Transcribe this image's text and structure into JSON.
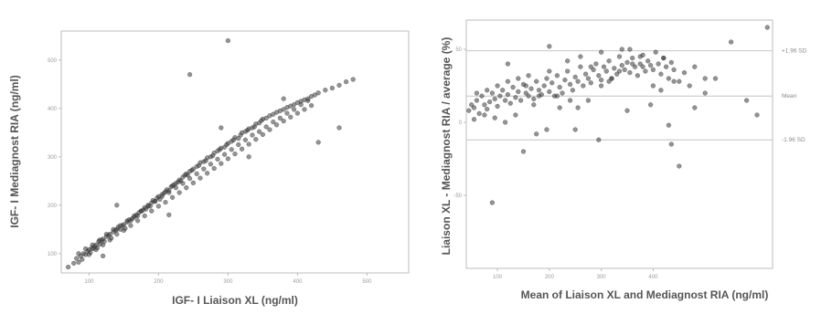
{
  "chart_data": [
    {
      "type": "scatter",
      "xlabel": "IGF- I Liaison XL (ng/ml)",
      "ylabel": "IGF- I Mediagnost RIA (ng/ml)",
      "xlim": [
        60,
        560
      ],
      "ylim": [
        60,
        560
      ],
      "xticks": [
        "100",
        "200",
        "300",
        "400",
        "500"
      ],
      "yticks": [
        "100",
        "200",
        "300",
        "400",
        "500"
      ],
      "grid": false,
      "series": [
        {
          "values_note_excluded": false,
          "x": [
            70,
            78,
            82,
            85,
            88,
            92,
            95,
            98,
            100,
            102,
            104,
            106,
            108,
            110,
            112,
            114,
            116,
            118,
            120,
            122,
            125,
            128,
            130,
            132,
            135,
            138,
            140,
            142,
            145,
            148,
            150,
            152,
            155,
            158,
            160,
            162,
            165,
            168,
            170,
            172,
            175,
            178,
            180,
            182,
            185,
            188,
            190,
            192,
            195,
            198,
            200,
            202,
            205,
            208,
            210,
            212,
            215,
            218,
            220,
            222,
            225,
            228,
            230,
            232,
            235,
            238,
            240,
            242,
            245,
            248,
            250,
            255,
            258,
            260,
            265,
            268,
            270,
            275,
            278,
            280,
            285,
            288,
            290,
            295,
            298,
            300,
            305,
            308,
            310,
            315,
            318,
            320,
            325,
            328,
            330,
            335,
            338,
            340,
            345,
            348,
            350,
            355,
            360,
            365,
            370,
            375,
            380,
            385,
            390,
            395,
            400,
            405,
            410,
            415,
            420,
            425,
            430,
            440,
            450,
            460,
            470,
            480,
            85,
            95,
            105,
            115,
            125,
            135,
            145,
            155,
            165,
            175,
            185,
            195,
            205,
            215,
            225,
            235,
            245,
            255,
            265,
            275,
            285,
            295,
            305,
            315,
            325,
            335,
            345,
            355,
            365,
            375,
            385,
            395,
            405,
            415,
            90,
            100,
            110,
            120,
            130,
            140,
            150,
            160,
            170,
            180,
            190,
            200,
            210,
            220,
            230,
            240,
            250,
            260,
            270,
            280,
            290,
            300,
            310,
            320,
            330,
            340,
            350,
            360,
            370,
            380,
            390,
            400,
            410,
            420,
            300,
            245,
            460,
            430,
            290,
            380,
            215,
            140,
            120,
            330
          ],
          "y": [
            72,
            80,
            90,
            82,
            95,
            100,
            98,
            105,
            108,
            102,
            112,
            110,
            115,
            118,
            112,
            125,
            120,
            128,
            130,
            125,
            135,
            138,
            140,
            132,
            145,
            148,
            150,
            155,
            150,
            158,
            160,
            152,
            165,
            170,
            168,
            172,
            175,
            180,
            178,
            185,
            188,
            190,
            195,
            192,
            200,
            198,
            205,
            210,
            208,
            215,
            218,
            212,
            222,
            225,
            228,
            232,
            230,
            238,
            240,
            242,
            245,
            248,
            252,
            250,
            258,
            262,
            265,
            262,
            270,
            272,
            275,
            280,
            282,
            288,
            290,
            292,
            298,
            300,
            302,
            308,
            312,
            315,
            318,
            320,
            325,
            328,
            332,
            335,
            340,
            338,
            345,
            350,
            352,
            355,
            358,
            360,
            362,
            368,
            370,
            375,
            378,
            380,
            385,
            388,
            392,
            395,
            398,
            402,
            405,
            408,
            412,
            415,
            418,
            420,
            425,
            428,
            432,
            438,
            442,
            448,
            455,
            460,
            100,
            110,
            118,
            128,
            140,
            150,
            158,
            168,
            178,
            188,
            198,
            208,
            218,
            226,
            236,
            245,
            255,
            265,
            275,
            285,
            295,
            305,
            315,
            325,
            335,
            345,
            352,
            362,
            372,
            380,
            390,
            398,
            408,
            416,
            88,
            98,
            108,
            118,
            128,
            140,
            148,
            158,
            168,
            178,
            188,
            198,
            206,
            216,
            226,
            236,
            246,
            256,
            266,
            276,
            286,
            296,
            306,
            316,
            326,
            336,
            346,
            356,
            366,
            374,
            382,
            390,
            398,
            406,
            540,
            470,
            360,
            330,
            360,
            420,
            180,
            200,
            95,
            300
          ]
        }
      ]
    },
    {
      "type": "scatter",
      "xlabel": "Mean of Liaison XL and Mediagnost RIA (ng/ml)",
      "ylabel": "Liaison XL - Mediagnost RIA / average (%)",
      "xlim": [
        40,
        630
      ],
      "ylim": [
        -100,
        70
      ],
      "xticks": [
        "100",
        "200",
        "300",
        "400"
      ],
      "yticks": [
        "50",
        "0",
        "-50"
      ],
      "grid": false,
      "reference_lines": [
        {
          "label": "+1.96 SD",
          "y": 49
        },
        {
          "label": "Mean",
          "y": 18
        },
        {
          "label": "-1.96 SD",
          "y": -12
        }
      ],
      "series": [
        {
          "x": [
            45,
            50,
            55,
            60,
            65,
            70,
            75,
            80,
            85,
            90,
            95,
            100,
            105,
            110,
            115,
            120,
            125,
            130,
            135,
            140,
            145,
            150,
            155,
            160,
            165,
            170,
            175,
            180,
            185,
            190,
            195,
            200,
            205,
            210,
            215,
            220,
            225,
            230,
            235,
            240,
            245,
            250,
            255,
            260,
            265,
            270,
            275,
            280,
            285,
            290,
            295,
            300,
            305,
            310,
            315,
            320,
            325,
            330,
            335,
            340,
            345,
            350,
            355,
            360,
            365,
            370,
            375,
            380,
            385,
            390,
            395,
            400,
            405,
            410,
            415,
            420,
            425,
            430,
            435,
            440,
            450,
            460,
            470,
            480,
            500,
            520,
            550,
            580,
            600,
            620,
            55,
            75,
            95,
            115,
            135,
            155,
            175,
            195,
            215,
            235,
            255,
            275,
            295,
            315,
            335,
            355,
            375,
            395,
            415,
            435,
            60,
            80,
            100,
            120,
            140,
            160,
            180,
            200,
            220,
            240,
            260,
            280,
            300,
            320,
            340,
            360,
            380,
            400,
            420,
            440,
            150,
            250,
            350,
            450,
            500,
            480,
            430,
            300,
            200,
            120,
            90,
            170
          ],
          "y": [
            8,
            12,
            10,
            15,
            6,
            18,
            12,
            9,
            14,
            20,
            16,
            11,
            18,
            22,
            15,
            19,
            13,
            24,
            17,
            21,
            15,
            26,
            20,
            18,
            23,
            16,
            28,
            22,
            19,
            25,
            30,
            21,
            27,
            18,
            32,
            24,
            20,
            29,
            35,
            26,
            22,
            31,
            28,
            38,
            25,
            33,
            30,
            27,
            36,
            40,
            32,
            29,
            38,
            35,
            42,
            30,
            37,
            33,
            45,
            39,
            36,
            41,
            34,
            44,
            38,
            32,
            40,
            46,
            35,
            42,
            39,
            36,
            48,
            40,
            33,
            44,
            38,
            30,
            41,
            36,
            28,
            34,
            25,
            38,
            20,
            30,
            55,
            15,
            5,
            65,
            2,
            5,
            3,
            0,
            5,
            25,
            -8,
            -5,
            18,
            42,
            10,
            15,
            -12,
            28,
            35,
            50,
            45,
            12,
            22,
            -15,
            20,
            22,
            25,
            28,
            30,
            32,
            18,
            35,
            10,
            15,
            45,
            38,
            25,
            30,
            50,
            40,
            38,
            25,
            44,
            28,
            -20,
            -5,
            8,
            -30,
            30,
            10,
            -2,
            48,
            52,
            40,
            -55,
            12
          ]
        }
      ]
    }
  ]
}
